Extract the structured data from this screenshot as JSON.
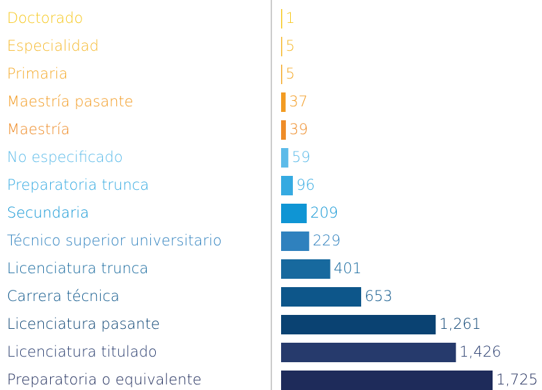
{
  "chart_data": {
    "type": "bar",
    "orientation": "horizontal",
    "categories": [
      "Doctorado",
      "Especialidad",
      "Primaria",
      "Maestría pasante",
      "Maestría",
      "No especificado",
      "Preparatoria trunca",
      "Secundaria",
      "Técnico superior universitario",
      "Licenciatura trunca",
      "Carrera técnica",
      "Licenciatura pasante",
      "Licenciatura titulado",
      "Preparatoria o equivalente"
    ],
    "values": [
      1,
      5,
      5,
      37,
      39,
      59,
      96,
      209,
      229,
      401,
      653,
      1261,
      1426,
      1725
    ],
    "value_labels": [
      "1",
      "5",
      "5",
      "37",
      "39",
      "59",
      "96",
      "209",
      "229",
      "401",
      "653",
      "1,261",
      "1,426",
      "1,725"
    ],
    "colors": [
      "#f6c81e",
      "#f5b82a",
      "#f4a928",
      "#f29b22",
      "#ee8c28",
      "#5cbbe9",
      "#35aae1",
      "#0f95d4",
      "#2f81be",
      "#17699e",
      "#0d568a",
      "#0a4272",
      "#263a6c",
      "#1e2b5a"
    ]
  }
}
